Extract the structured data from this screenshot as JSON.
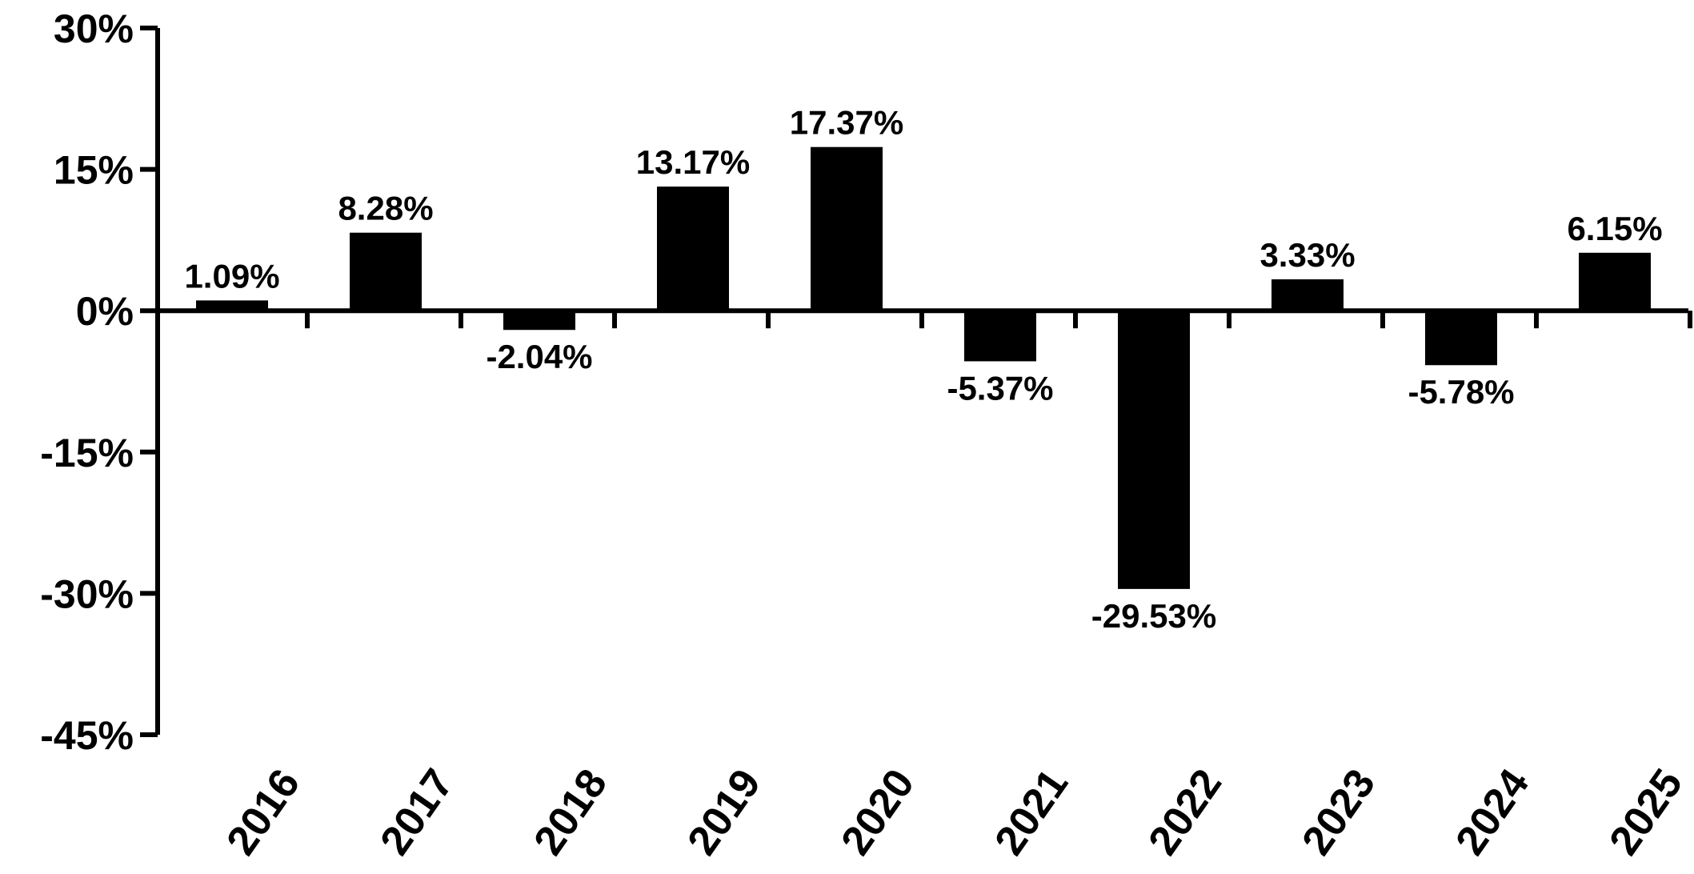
{
  "chart_data": {
    "type": "bar",
    "title": "",
    "xlabel": "",
    "ylabel": "",
    "categories": [
      "2016",
      "2017",
      "2018",
      "2019",
      "2020",
      "2021",
      "2022",
      "2023",
      "2024",
      "2025"
    ],
    "values": [
      1.09,
      8.28,
      -2.04,
      13.17,
      17.37,
      -5.37,
      -29.53,
      3.33,
      -5.78,
      6.15
    ],
    "value_labels": [
      "1.09%",
      "8.28%",
      "-2.04%",
      "13.17%",
      "17.37%",
      "-5.37%",
      "-29.53%",
      "3.33%",
      "-5.78%",
      "6.15%"
    ],
    "ylim": [
      -45,
      30
    ],
    "yticks": [
      30,
      15,
      0,
      -15,
      -30,
      -45
    ],
    "ytick_labels": [
      "30%",
      "15%",
      "0%",
      "-15%",
      "-30%",
      "-45%"
    ],
    "grid": false,
    "legend": "none",
    "bar_color": "#000000"
  }
}
